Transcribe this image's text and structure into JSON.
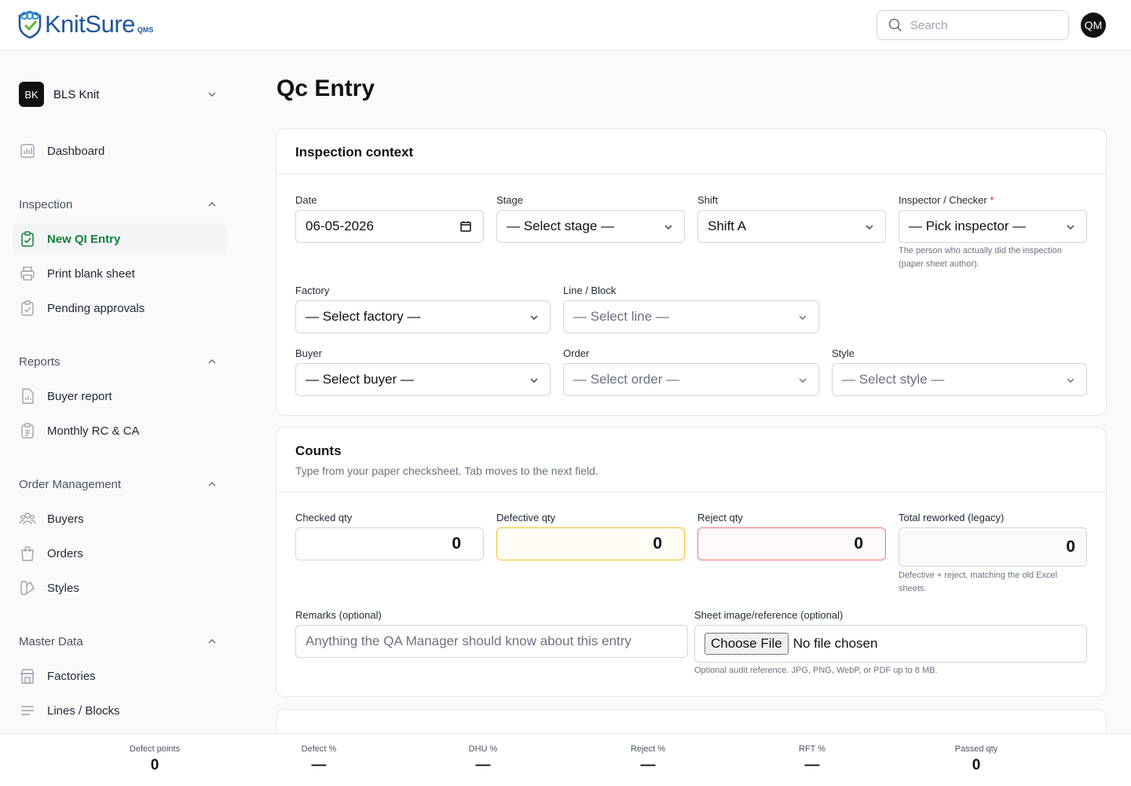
{
  "brand": {
    "name": "KnitSure",
    "sub": "QMS"
  },
  "search": {
    "placeholder": "Search"
  },
  "user": {
    "initials": "QM"
  },
  "org": {
    "initials": "BK",
    "name": "BLS Knit"
  },
  "sidebar": {
    "dashboard": "Dashboard",
    "inspection": {
      "title": "Inspection",
      "items": [
        "New QI Entry",
        "Print blank sheet",
        "Pending approvals"
      ]
    },
    "reports": {
      "title": "Reports",
      "items": [
        "Buyer report",
        "Monthly RC & CA"
      ]
    },
    "order_management": {
      "title": "Order Management",
      "items": [
        "Buyers",
        "Orders",
        "Styles"
      ]
    },
    "master_data": {
      "title": "Master Data",
      "items": [
        "Factories",
        "Lines / Blocks"
      ]
    }
  },
  "page": {
    "title": "Qc Entry"
  },
  "context": {
    "title": "Inspection context",
    "date_label": "Date",
    "date_value": "06-05-2026",
    "stage_label": "Stage",
    "stage_value": "— Select stage —",
    "shift_label": "Shift",
    "shift_value": "Shift A",
    "inspector_label": "Inspector / Checker",
    "inspector_required": "*",
    "inspector_value": "— Pick inspector —",
    "inspector_hint_1": "The person who actually did the inspection",
    "inspector_hint_2": "(paper sheet author).",
    "factory_label": "Factory",
    "factory_value": "— Select factory —",
    "line_label": "Line / Block",
    "line_value": "— Select line —",
    "buyer_label": "Buyer",
    "buyer_value": "— Select buyer —",
    "order_label": "Order",
    "order_value": "— Select order —",
    "style_label": "Style",
    "style_value": "— Select style —"
  },
  "counts": {
    "title": "Counts",
    "subtitle": "Type from your paper checksheet. Tab moves to the next field.",
    "checked_label": "Checked qty",
    "checked_value": "0",
    "defective_label": "Defective qty",
    "defective_value": "0",
    "reject_label": "Reject qty",
    "reject_value": "0",
    "reworked_label": "Total reworked (legacy)",
    "reworked_value": "0",
    "reworked_hint_1": "Defective + reject, matching the old Excel",
    "reworked_hint_2": "sheets.",
    "remarks_label": "Remarks (optional)",
    "remarks_placeholder": "Anything the QA Manager should know about this entry",
    "sheet_label": "Sheet image/reference (optional)",
    "file_button": "Choose File",
    "file_status": "No file chosen",
    "sheet_hint": "Optional audit reference. JPG, PNG, WebP, or PDF up to 8 MB."
  },
  "summary": [
    {
      "label": "Defect points",
      "value": "0"
    },
    {
      "label": "Defect %",
      "value": "—"
    },
    {
      "label": "DHU %",
      "value": "—"
    },
    {
      "label": "Reject %",
      "value": "—"
    },
    {
      "label": "RFT %",
      "value": "—"
    },
    {
      "label": "Passed qty",
      "value": "0"
    }
  ],
  "colors": {
    "brand": "#1e56a0",
    "active": "#15803d",
    "amber": "#fbbf24",
    "red": "#f87171"
  }
}
